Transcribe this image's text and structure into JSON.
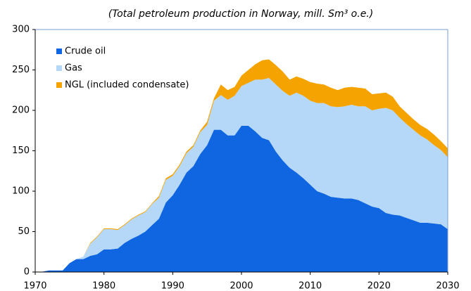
{
  "chart_data": {
    "type": "area",
    "stacked": true,
    "title": "(Total petroleum production in Norway, mill. Sm³ o.e.)",
    "x": [
      1970,
      1971,
      1972,
      1973,
      1974,
      1975,
      1976,
      1977,
      1978,
      1979,
      1980,
      1981,
      1982,
      1983,
      1984,
      1985,
      1986,
      1987,
      1988,
      1989,
      1990,
      1991,
      1992,
      1993,
      1994,
      1995,
      1996,
      1997,
      1998,
      1999,
      2000,
      2001,
      2002,
      2003,
      2004,
      2005,
      2006,
      2007,
      2008,
      2009,
      2010,
      2011,
      2012,
      2013,
      2014,
      2015,
      2016,
      2017,
      2018,
      2019,
      2020,
      2021,
      2022,
      2023,
      2024,
      2025,
      2026,
      2027,
      2028,
      2029,
      2030
    ],
    "series": [
      {
        "name": "Crude oil",
        "color": "#0f66e0",
        "values": [
          0,
          0.3,
          2,
          2,
          2,
          11,
          16,
          16,
          20,
          22,
          28,
          28,
          29,
          36,
          41,
          45,
          50,
          58,
          66,
          86,
          95,
          108,
          123,
          131,
          146,
          157,
          176,
          176,
          169,
          169,
          181,
          181,
          174,
          166,
          163,
          149,
          138,
          129,
          123,
          116,
          108,
          100,
          97,
          93,
          92,
          91,
          91,
          89,
          85,
          81,
          79,
          73,
          71,
          70,
          67,
          64,
          61,
          61,
          60,
          59,
          53
        ]
      },
      {
        "name": "Gas",
        "color": "#b5d7f8",
        "values": [
          0,
          0,
          0,
          0,
          0,
          0,
          0,
          3,
          15,
          21,
          25,
          25,
          23,
          22,
          24,
          25,
          24,
          26,
          26,
          28,
          24,
          23,
          24,
          24,
          27,
          25,
          36,
          43,
          44,
          49,
          49,
          53,
          64,
          72,
          77,
          83,
          86,
          89,
          99,
          102,
          104,
          109,
          112,
          112,
          112,
          114,
          116,
          116,
          120,
          119,
          123,
          130,
          129,
          121,
          116,
          112,
          108,
          103,
          97,
          92,
          89
        ]
      },
      {
        "name": "NGL (included condensate)",
        "color": "#f5a300",
        "values": [
          0,
          0,
          0,
          0,
          0,
          0,
          0,
          0,
          1,
          1,
          1,
          1,
          1,
          1,
          1,
          1,
          1,
          1,
          2,
          2,
          2,
          2,
          2,
          2,
          2,
          4,
          3,
          13,
          12,
          11,
          13,
          16,
          19,
          24,
          23,
          24,
          24,
          20,
          20,
          21,
          23,
          24,
          23,
          23,
          21,
          23,
          22,
          23,
          22,
          20,
          19,
          19,
          17,
          14,
          14,
          13,
          13,
          13,
          13,
          11,
          11
        ]
      }
    ],
    "xlim": [
      1970,
      2030
    ],
    "xticks": [
      1970,
      1980,
      1990,
      2000,
      2010,
      2020,
      2030
    ],
    "ylim": [
      0,
      300
    ],
    "yticks": [
      0,
      50,
      100,
      150,
      200,
      250,
      300
    ],
    "legend": "upper left"
  }
}
